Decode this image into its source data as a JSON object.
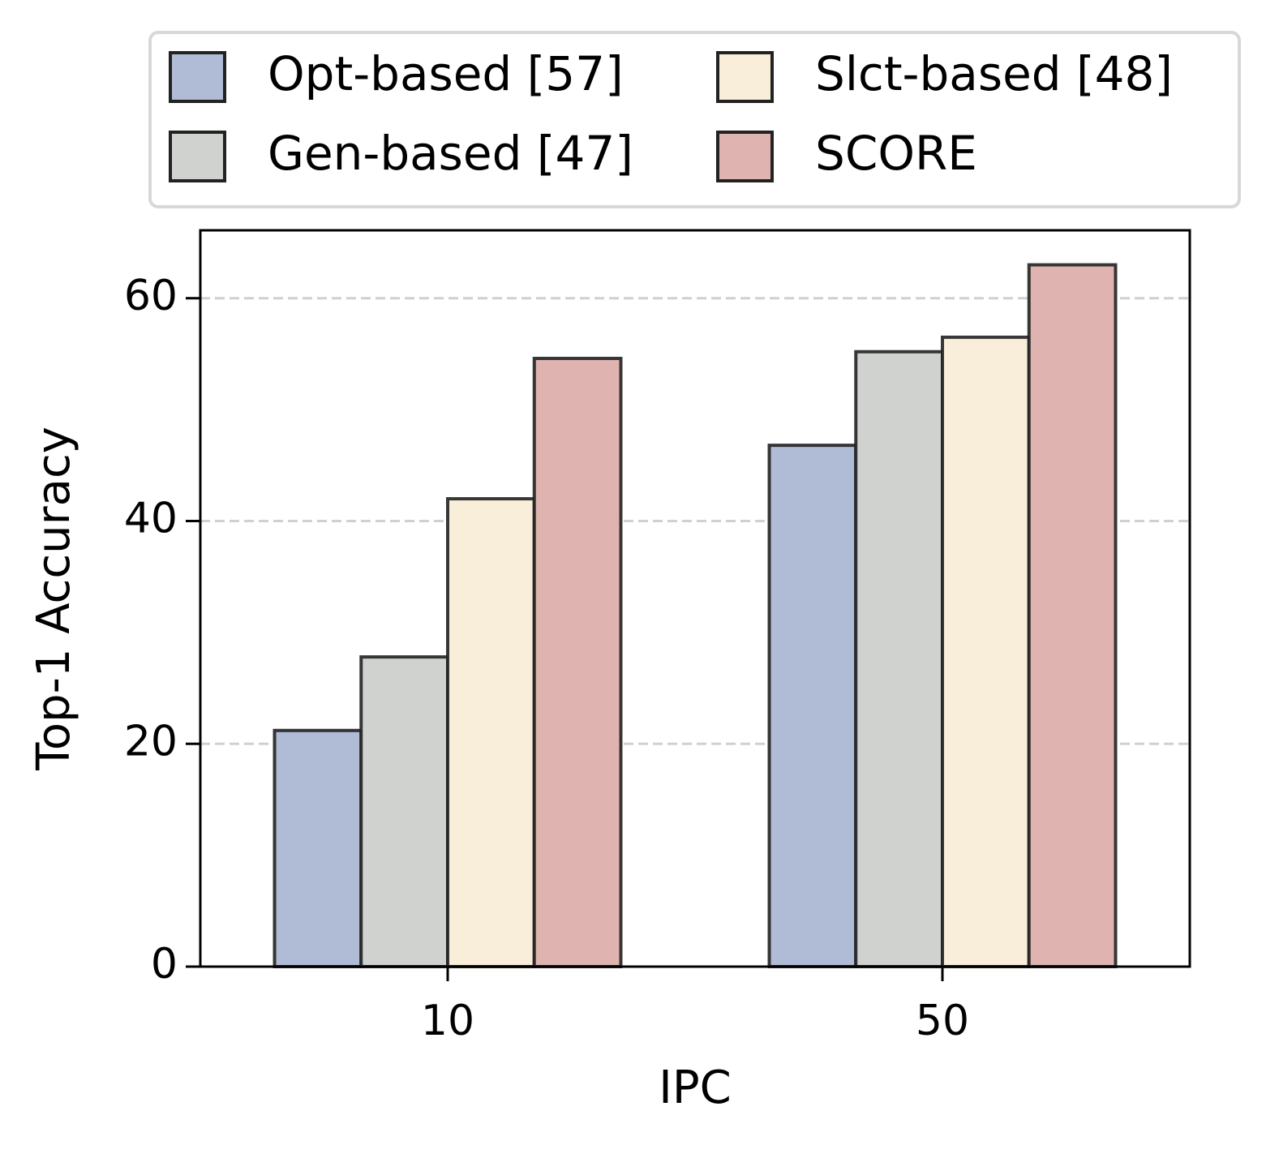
{
  "chart_data": {
    "type": "bar",
    "x_label": "IPC",
    "y_label": "Top-1 Accuracy",
    "categories": [
      "10",
      "50"
    ],
    "series": [
      {
        "name": "Opt-based [57]",
        "color": "#b0bcd6",
        "values": [
          21.2,
          46.8
        ]
      },
      {
        "name": "Gen-based [47]",
        "color": "#d0d2cf",
        "values": [
          27.8,
          55.2
        ]
      },
      {
        "name": "Slct-based [48]",
        "color": "#f8eed9",
        "values": [
          42.0,
          56.5
        ]
      },
      {
        "name": "SCORE",
        "color": "#dfb4b0",
        "values": [
          54.6,
          63.0
        ]
      }
    ],
    "ylim": [
      0,
      66.1
    ],
    "yticks": [
      0,
      20,
      40,
      60
    ],
    "grid": true
  }
}
